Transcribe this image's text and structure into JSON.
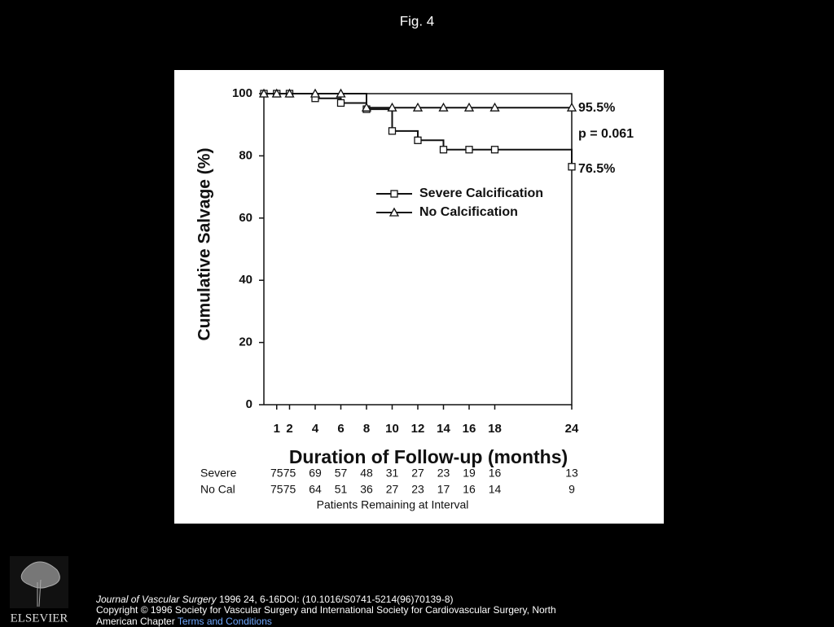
{
  "slide_title": "Fig. 4",
  "chart_data": {
    "type": "step",
    "y_label": "Cumulative Salvage (%)",
    "x_label": "Duration of Follow-up (months)",
    "xlim": [
      0,
      24
    ],
    "xticks": [
      1,
      2,
      4,
      6,
      8,
      10,
      12,
      14,
      16,
      18,
      24
    ],
    "ylim": [
      0,
      100
    ],
    "yticks": [
      0,
      20,
      40,
      60,
      80,
      100
    ],
    "x": [
      0,
      1,
      2,
      4,
      6,
      8,
      10,
      12,
      14,
      16,
      18,
      24
    ],
    "series": [
      {
        "name": "Severe Calcification",
        "color": "#111111",
        "marker": "square",
        "values": [
          100,
          100,
          100,
          98.5,
          97,
          95,
          88,
          85,
          82,
          82,
          82,
          76.5
        ]
      },
      {
        "name": "No Calcification",
        "color": "#111111",
        "marker": "triangle",
        "values": [
          100,
          100,
          100,
          100,
          100,
          95.5,
          95.5,
          95.5,
          95.5,
          95.5,
          95.5,
          95.5
        ]
      }
    ],
    "annotations": [
      "95.5%",
      "p = 0.061",
      "76.5%"
    ],
    "at_risk": {
      "label": "Patients Remaining at Interval",
      "rows": [
        {
          "name": "Severe",
          "values": [
            75,
            75,
            69,
            57,
            48,
            31,
            27,
            23,
            19,
            16,
            13
          ]
        },
        {
          "name": "No Cal",
          "values": [
            75,
            75,
            64,
            51,
            36,
            27,
            23,
            17,
            16,
            14,
            9
          ]
        }
      ]
    }
  },
  "footer": {
    "journal": "Journal of Vascular Surgery",
    "citation": " 1996 24, 6-16DOI: (10.1016/S0741-5214(96)70139-8)",
    "copyright": "Copyright © 1996 Society for Vascular Surgery and International Society for Cardiovascular Surgery, North American Chapter ",
    "link": "Terms and Conditions"
  },
  "publisher": "ELSEVIER"
}
